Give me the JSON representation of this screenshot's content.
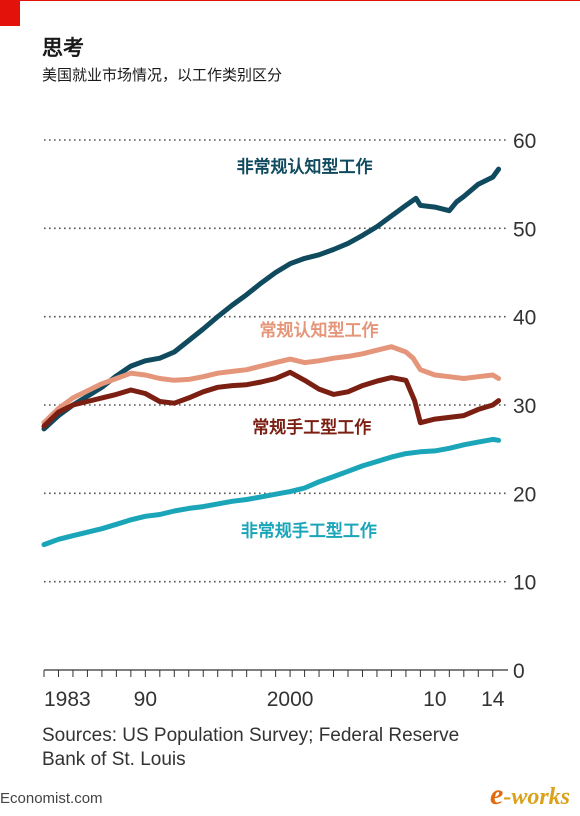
{
  "header": {
    "title": "思考",
    "subtitle": "美国就业市场情况，以工作类别区分"
  },
  "source": "Sources: US Population Survey; Federal Reserve Bank of St. Louis",
  "footer": "Economist.com",
  "logo": {
    "text": "works",
    "e": "e",
    "dash": "-"
  },
  "colors": {
    "accent": "#e3120b",
    "nonroutine_cognitive": "#0f4a5e",
    "routine_cognitive": "#e5967a",
    "routine_manual": "#7a1f12",
    "nonroutine_manual": "#1aa5b8"
  },
  "chart_data": {
    "type": "line",
    "title": "思考",
    "subtitle": "美国就业市场情况，以工作类别区分",
    "xlabel": "",
    "ylabel": "",
    "xlim": [
      1983,
      2014.5
    ],
    "ylim": [
      0,
      60
    ],
    "x_ticks": [
      1983,
      1990,
      2000,
      2010,
      2014
    ],
    "x_tick_labels": [
      "1983",
      "90",
      "2000",
      "10",
      "14"
    ],
    "y_ticks": [
      0,
      10,
      20,
      30,
      40,
      50,
      60
    ],
    "y_axis_position": "right",
    "grid": true,
    "legend": "inline labels",
    "series": [
      {
        "name": "非常规认知型工作",
        "color": "#0f4a5e",
        "label_at": {
          "x": 2001,
          "y": 57
        },
        "points": [
          [
            1983,
            27.3
          ],
          [
            1984,
            28.8
          ],
          [
            1985,
            30.0
          ],
          [
            1986,
            31.0
          ],
          [
            1987,
            32.0
          ],
          [
            1988,
            33.3
          ],
          [
            1989,
            34.4
          ],
          [
            1990,
            35.0
          ],
          [
            1991,
            35.3
          ],
          [
            1992,
            36.0
          ],
          [
            1993,
            37.3
          ],
          [
            1994,
            38.6
          ],
          [
            1995,
            40.0
          ],
          [
            1996,
            41.3
          ],
          [
            1997,
            42.5
          ],
          [
            1998,
            43.8
          ],
          [
            1999,
            45.0
          ],
          [
            2000,
            46.0
          ],
          [
            2001,
            46.6
          ],
          [
            2002,
            47.0
          ],
          [
            2003,
            47.6
          ],
          [
            2004,
            48.3
          ],
          [
            2005,
            49.2
          ],
          [
            2006,
            50.2
          ],
          [
            2007,
            51.4
          ],
          [
            2008,
            52.6
          ],
          [
            2008.7,
            53.4
          ],
          [
            2009,
            52.6
          ],
          [
            2010,
            52.4
          ],
          [
            2011,
            52.0
          ],
          [
            2011.5,
            53.0
          ],
          [
            2012,
            53.6
          ],
          [
            2013,
            55.0
          ],
          [
            2014,
            55.8
          ],
          [
            2014.4,
            56.7
          ]
        ]
      },
      {
        "name": "常规认知型工作",
        "color": "#e5967a",
        "label_at": {
          "x": 2002,
          "y": 38.5
        },
        "points": [
          [
            1983,
            28.0
          ],
          [
            1984,
            29.6
          ],
          [
            1985,
            30.8
          ],
          [
            1986,
            31.6
          ],
          [
            1987,
            32.4
          ],
          [
            1988,
            33.0
          ],
          [
            1989,
            33.6
          ],
          [
            1990,
            33.4
          ],
          [
            1991,
            33.0
          ],
          [
            1992,
            32.8
          ],
          [
            1993,
            32.9
          ],
          [
            1994,
            33.2
          ],
          [
            1995,
            33.6
          ],
          [
            1996,
            33.8
          ],
          [
            1997,
            34.0
          ],
          [
            1998,
            34.4
          ],
          [
            1999,
            34.8
          ],
          [
            2000,
            35.2
          ],
          [
            2001,
            34.8
          ],
          [
            2002,
            35.0
          ],
          [
            2003,
            35.3
          ],
          [
            2004,
            35.5
          ],
          [
            2005,
            35.8
          ],
          [
            2006,
            36.2
          ],
          [
            2007,
            36.6
          ],
          [
            2008,
            36.0
          ],
          [
            2008.5,
            35.3
          ],
          [
            2009,
            34.0
          ],
          [
            2010,
            33.4
          ],
          [
            2011,
            33.2
          ],
          [
            2012,
            33.0
          ],
          [
            2013,
            33.2
          ],
          [
            2014,
            33.4
          ],
          [
            2014.4,
            33.0
          ]
        ]
      },
      {
        "name": "常规手工型工作",
        "color": "#7a1f12",
        "label_at": {
          "x": 2001.5,
          "y": 27.5
        },
        "points": [
          [
            1983,
            27.6
          ],
          [
            1984,
            29.2
          ],
          [
            1985,
            30.0
          ],
          [
            1986,
            30.4
          ],
          [
            1987,
            30.8
          ],
          [
            1988,
            31.2
          ],
          [
            1989,
            31.7
          ],
          [
            1990,
            31.3
          ],
          [
            1991,
            30.4
          ],
          [
            1992,
            30.2
          ],
          [
            1993,
            30.8
          ],
          [
            1994,
            31.5
          ],
          [
            1995,
            32.0
          ],
          [
            1996,
            32.2
          ],
          [
            1997,
            32.3
          ],
          [
            1998,
            32.6
          ],
          [
            1999,
            33.0
          ],
          [
            2000,
            33.7
          ],
          [
            2001,
            32.8
          ],
          [
            2002,
            31.8
          ],
          [
            2003,
            31.2
          ],
          [
            2004,
            31.5
          ],
          [
            2005,
            32.2
          ],
          [
            2006,
            32.7
          ],
          [
            2007,
            33.1
          ],
          [
            2008,
            32.8
          ],
          [
            2008.6,
            30.5
          ],
          [
            2009,
            28.0
          ],
          [
            2010,
            28.4
          ],
          [
            2011,
            28.6
          ],
          [
            2012,
            28.8
          ],
          [
            2013,
            29.5
          ],
          [
            2014,
            30.0
          ],
          [
            2014.4,
            30.5
          ]
        ]
      },
      {
        "name": "非常规手工型工作",
        "color": "#1aa5b8",
        "label_at": {
          "x": 2001.3,
          "y": 15.8
        },
        "points": [
          [
            1983,
            14.2
          ],
          [
            1984,
            14.8
          ],
          [
            1985,
            15.2
          ],
          [
            1986,
            15.6
          ],
          [
            1987,
            16.0
          ],
          [
            1988,
            16.5
          ],
          [
            1989,
            17.0
          ],
          [
            1990,
            17.4
          ],
          [
            1991,
            17.6
          ],
          [
            1992,
            18.0
          ],
          [
            1993,
            18.3
          ],
          [
            1994,
            18.5
          ],
          [
            1995,
            18.8
          ],
          [
            1996,
            19.1
          ],
          [
            1997,
            19.3
          ],
          [
            1998,
            19.6
          ],
          [
            1999,
            19.9
          ],
          [
            2000,
            20.2
          ],
          [
            2001,
            20.6
          ],
          [
            2002,
            21.3
          ],
          [
            2003,
            21.9
          ],
          [
            2004,
            22.5
          ],
          [
            2005,
            23.1
          ],
          [
            2006,
            23.6
          ],
          [
            2007,
            24.1
          ],
          [
            2008,
            24.5
          ],
          [
            2009,
            24.7
          ],
          [
            2010,
            24.8
          ],
          [
            2011,
            25.1
          ],
          [
            2012,
            25.5
          ],
          [
            2013,
            25.8
          ],
          [
            2014,
            26.1
          ],
          [
            2014.4,
            26.0
          ]
        ]
      }
    ]
  }
}
